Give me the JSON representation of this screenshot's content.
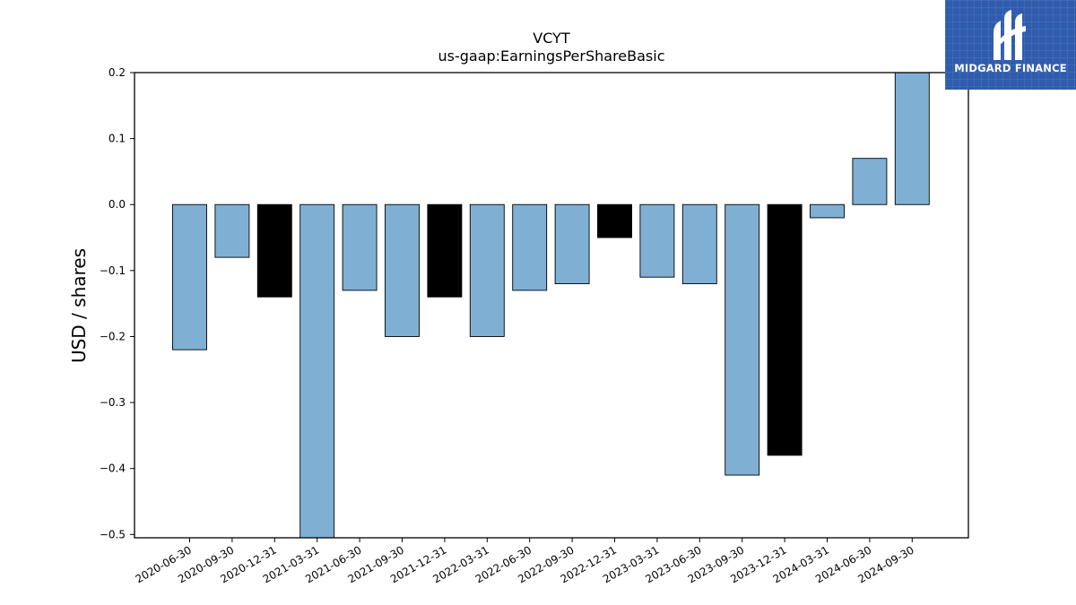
{
  "chart_data": {
    "type": "bar",
    "title": "VCYT",
    "subtitle": "us-gaap:EarningsPerShareBasic",
    "xlabel": "",
    "ylabel": "USD / shares",
    "ylim": [
      -0.505,
      0.2
    ],
    "yticks": [
      0.2,
      0.1,
      0.0,
      -0.1,
      -0.2,
      -0.3,
      -0.4,
      -0.5
    ],
    "ytick_labels": [
      "0.2",
      "0.1",
      "0.0",
      "−0.1",
      "−0.2",
      "−0.3",
      "−0.4",
      "−0.5"
    ],
    "grid": false,
    "categories": [
      "2020-06-30",
      "2020-09-30",
      "2020-12-31",
      "2021-03-31",
      "2021-06-30",
      "2021-09-30",
      "2021-12-31",
      "2022-03-31",
      "2022-06-30",
      "2022-09-30",
      "2022-12-31",
      "2023-03-31",
      "2023-06-30",
      "2023-09-30",
      "2023-12-31",
      "2024-03-31",
      "2024-06-30",
      "2024-09-30"
    ],
    "values": [
      -0.22,
      -0.08,
      -0.14,
      -0.51,
      -0.13,
      -0.2,
      -0.14,
      -0.2,
      -0.13,
      -0.12,
      -0.05,
      -0.11,
      -0.12,
      -0.41,
      -0.38,
      -0.02,
      0.07,
      0.2
    ],
    "colors": [
      "#7fb0d4",
      "#7fb0d4",
      "#000000",
      "#7fb0d4",
      "#7fb0d4",
      "#7fb0d4",
      "#000000",
      "#7fb0d4",
      "#7fb0d4",
      "#7fb0d4",
      "#000000",
      "#7fb0d4",
      "#7fb0d4",
      "#7fb0d4",
      "#000000",
      "#7fb0d4",
      "#7fb0d4",
      "#7fb0d4"
    ]
  },
  "logo": {
    "text": "MIDGARD FINANCE",
    "icon": "midgard-finance-logo-icon",
    "background": "#2f5cad"
  }
}
